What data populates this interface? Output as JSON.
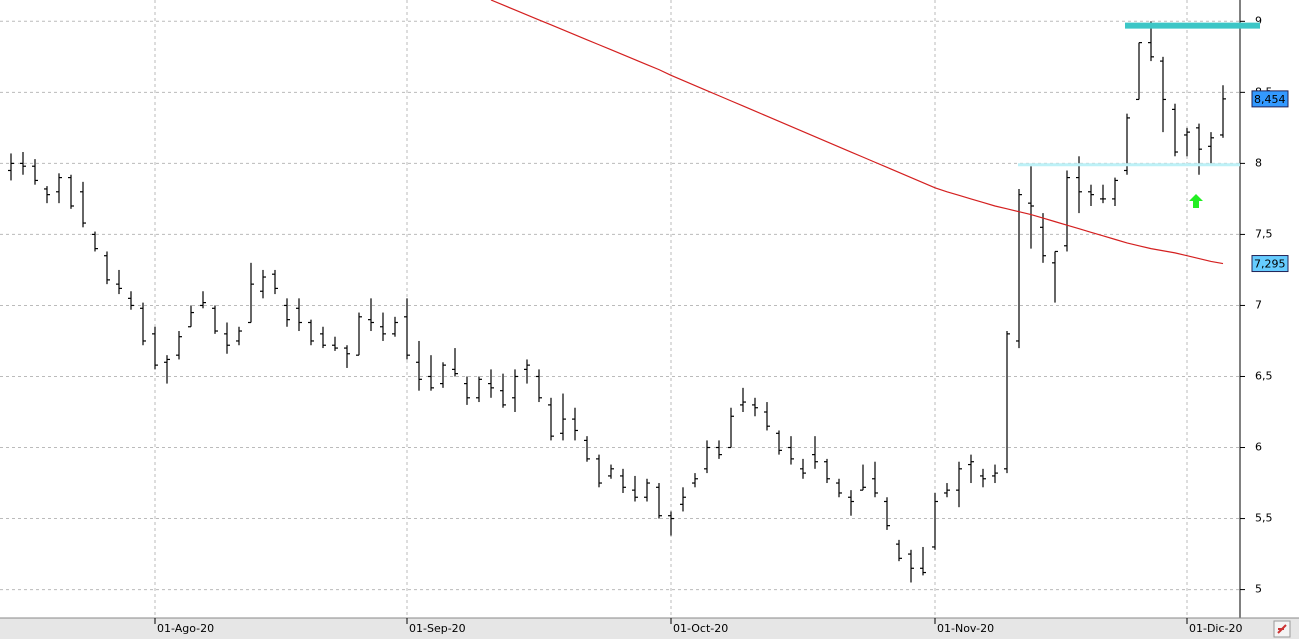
{
  "chart_data": {
    "type": "ohlc",
    "bar_color": "#000000",
    "categories": [
      null,
      null,
      null,
      null,
      null,
      null,
      null,
      null,
      null,
      null,
      null,
      null,
      "01-Ago-20",
      null,
      null,
      null,
      null,
      null,
      null,
      null,
      null,
      null,
      null,
      null,
      null,
      null,
      null,
      null,
      null,
      null,
      null,
      null,
      null,
      "01-Sep-20",
      null,
      null,
      null,
      null,
      null,
      null,
      null,
      null,
      null,
      null,
      null,
      null,
      null,
      null,
      null,
      null,
      null,
      null,
      null,
      null,
      null,
      "01-Oct-20",
      null,
      null,
      null,
      null,
      null,
      null,
      null,
      null,
      null,
      null,
      null,
      null,
      null,
      null,
      null,
      null,
      null,
      null,
      null,
      null,
      null,
      "01-Nov-20",
      null,
      null,
      null,
      null,
      null,
      null,
      null,
      null,
      null,
      null,
      null,
      null,
      null,
      null,
      null,
      null,
      null,
      null,
      null,
      null,
      "01-Dic-20",
      null,
      null,
      null
    ],
    "open": [
      7.95,
      8.0,
      7.98,
      7.82,
      7.8,
      7.9,
      7.8,
      7.5,
      7.35,
      7.15,
      7.05,
      6.98,
      6.8,
      6.6,
      6.65,
      6.85,
      7.0,
      6.98,
      6.8,
      6.75,
      6.88,
      7.1,
      7.22,
      7.0,
      6.98,
      6.88,
      6.8,
      6.72,
      6.7,
      6.65,
      6.9,
      6.85,
      6.8,
      6.92,
      6.6,
      6.5,
      6.45,
      6.55,
      6.45,
      6.35,
      6.45,
      6.4,
      6.35,
      6.55,
      6.5,
      6.3,
      6.1,
      6.2,
      6.05,
      5.92,
      5.8,
      5.8,
      5.7,
      5.65,
      5.72,
      5.52,
      5.6,
      5.75,
      5.85,
      6.0,
      6.0,
      6.3,
      6.3,
      6.25,
      6.1,
      6.0,
      5.85,
      5.95,
      5.9,
      5.75,
      5.65,
      5.7,
      5.78,
      5.62,
      5.32,
      5.25,
      5.15,
      5.3,
      5.68,
      5.7,
      5.88,
      5.8,
      5.8,
      5.85,
      6.75,
      7.72,
      7.55,
      7.3,
      7.42,
      7.9,
      7.8,
      7.75,
      7.75,
      7.95,
      8.45,
      8.85,
      8.72,
      8.38,
      8.2,
      8.25,
      8.12,
      8.2
    ],
    "high": [
      8.07,
      8.08,
      8.03,
      7.84,
      7.93,
      7.92,
      7.87,
      7.52,
      7.38,
      7.25,
      7.1,
      7.02,
      6.85,
      6.65,
      6.82,
      7.0,
      7.1,
      7.0,
      6.88,
      6.85,
      7.3,
      7.25,
      7.25,
      7.05,
      7.05,
      6.9,
      6.85,
      6.78,
      6.72,
      6.95,
      7.05,
      6.95,
      6.92,
      7.05,
      6.75,
      6.65,
      6.6,
      6.7,
      6.5,
      6.5,
      6.55,
      6.52,
      6.55,
      6.62,
      6.55,
      6.35,
      6.38,
      6.28,
      6.08,
      5.95,
      5.88,
      5.85,
      5.8,
      5.78,
      5.75,
      5.55,
      5.72,
      5.82,
      6.05,
      6.05,
      6.28,
      6.42,
      6.35,
      6.32,
      6.12,
      6.08,
      5.92,
      6.08,
      5.92,
      5.78,
      5.7,
      5.88,
      5.9,
      5.65,
      5.35,
      5.28,
      5.3,
      5.68,
      5.75,
      5.9,
      5.95,
      5.85,
      5.88,
      6.82,
      7.82,
      7.98,
      7.65,
      7.38,
      7.95,
      8.05,
      7.85,
      7.85,
      7.9,
      8.35,
      8.85,
      9.0,
      8.75,
      8.42,
      8.25,
      8.28,
      8.22,
      8.55
    ],
    "low": [
      7.88,
      7.92,
      7.85,
      7.72,
      7.72,
      7.68,
      7.55,
      7.38,
      7.15,
      7.08,
      6.97,
      6.72,
      6.55,
      6.45,
      6.62,
      6.85,
      6.98,
      6.8,
      6.66,
      6.72,
      6.88,
      7.05,
      7.08,
      6.85,
      6.82,
      6.72,
      6.7,
      6.68,
      6.56,
      6.65,
      6.82,
      6.75,
      6.78,
      6.62,
      6.4,
      6.4,
      6.42,
      6.5,
      6.3,
      6.32,
      6.35,
      6.28,
      6.25,
      6.45,
      6.32,
      6.05,
      6.05,
      6.05,
      5.9,
      5.72,
      5.78,
      5.68,
      5.62,
      5.62,
      5.5,
      5.38,
      5.55,
      5.72,
      5.82,
      5.92,
      6.0,
      6.25,
      6.22,
      6.12,
      5.95,
      5.88,
      5.78,
      5.85,
      5.75,
      5.65,
      5.52,
      5.7,
      5.65,
      5.42,
      5.2,
      5.05,
      5.1,
      5.28,
      5.65,
      5.58,
      5.75,
      5.72,
      5.75,
      5.82,
      6.7,
      7.4,
      7.3,
      7.02,
      7.38,
      7.65,
      7.7,
      7.72,
      7.7,
      7.92,
      8.45,
      8.72,
      8.22,
      8.05,
      8.05,
      7.92,
      8.0,
      8.18
    ],
    "close": [
      8.0,
      7.98,
      7.88,
      7.78,
      7.9,
      7.7,
      7.58,
      7.4,
      7.18,
      7.12,
      7.0,
      6.75,
      6.58,
      6.62,
      6.78,
      6.95,
      7.02,
      6.82,
      6.72,
      6.82,
      7.15,
      7.2,
      7.12,
      6.9,
      6.88,
      6.75,
      6.72,
      6.7,
      6.66,
      6.92,
      6.88,
      6.8,
      6.88,
      6.65,
      6.48,
      6.42,
      6.58,
      6.52,
      6.35,
      6.48,
      6.42,
      6.3,
      6.5,
      6.58,
      6.35,
      6.08,
      6.2,
      6.12,
      5.92,
      5.75,
      5.85,
      5.72,
      5.65,
      5.75,
      5.52,
      5.5,
      5.65,
      5.78,
      6.0,
      5.95,
      6.22,
      6.32,
      6.28,
      6.15,
      5.98,
      5.92,
      5.82,
      5.9,
      5.78,
      5.68,
      5.62,
      5.72,
      5.68,
      5.45,
      5.22,
      5.15,
      5.12,
      5.62,
      5.7,
      5.85,
      5.9,
      5.78,
      5.82,
      6.8,
      7.78,
      7.7,
      7.35,
      7.38,
      7.9,
      7.8,
      7.78,
      7.75,
      7.88,
      8.32,
      8.85,
      8.75,
      8.45,
      8.08,
      8.22,
      8.1,
      8.18,
      8.454
    ],
    "close_last_label": "8,454",
    "close_label_color": "#3399ff",
    "moving_average": {
      "color": "#d42020",
      "label_color": "#66ccff",
      "last_label": "7,295",
      "values": [
        null,
        null,
        null,
        null,
        null,
        null,
        null,
        null,
        null,
        null,
        null,
        null,
        null,
        null,
        null,
        null,
        null,
        null,
        null,
        null,
        null,
        null,
        null,
        null,
        null,
        null,
        null,
        null,
        null,
        null,
        null,
        null,
        null,
        null,
        null,
        null,
        null,
        null,
        null,
        null,
        9.15,
        9.115,
        9.08,
        9.045,
        9.01,
        8.975,
        8.94,
        8.905,
        8.87,
        8.835,
        8.8,
        8.765,
        8.73,
        8.695,
        8.66,
        8.62,
        8.584,
        8.548,
        8.512,
        8.476,
        8.44,
        8.404,
        8.368,
        8.332,
        8.296,
        8.26,
        8.224,
        8.188,
        8.152,
        8.116,
        8.08,
        8.044,
        8.008,
        7.972,
        7.936,
        7.9,
        7.864,
        7.828,
        7.8,
        7.775,
        7.75,
        7.725,
        7.7,
        7.68,
        7.66,
        7.64,
        7.615,
        7.59,
        7.565,
        7.54,
        7.515,
        7.49,
        7.465,
        7.44,
        7.42,
        7.4,
        7.385,
        7.37,
        7.35,
        7.33,
        7.31,
        7.295
      ]
    },
    "levels": [
      {
        "value": 8.97,
        "color": "#3cc6c6"
      },
      {
        "value": 7.99,
        "color": "#bdf1f7"
      }
    ],
    "ylim": [
      4.8,
      9.15
    ],
    "yticks": [
      5,
      {
        "value": 5.5,
        "label": "5,5"
      },
      6,
      {
        "value": 6.5,
        "label": "6,5"
      },
      7,
      {
        "value": 7.5,
        "label": "7,5"
      },
      8,
      {
        "value": 8.5,
        "label": "8,5"
      },
      9
    ],
    "grid": true
  }
}
